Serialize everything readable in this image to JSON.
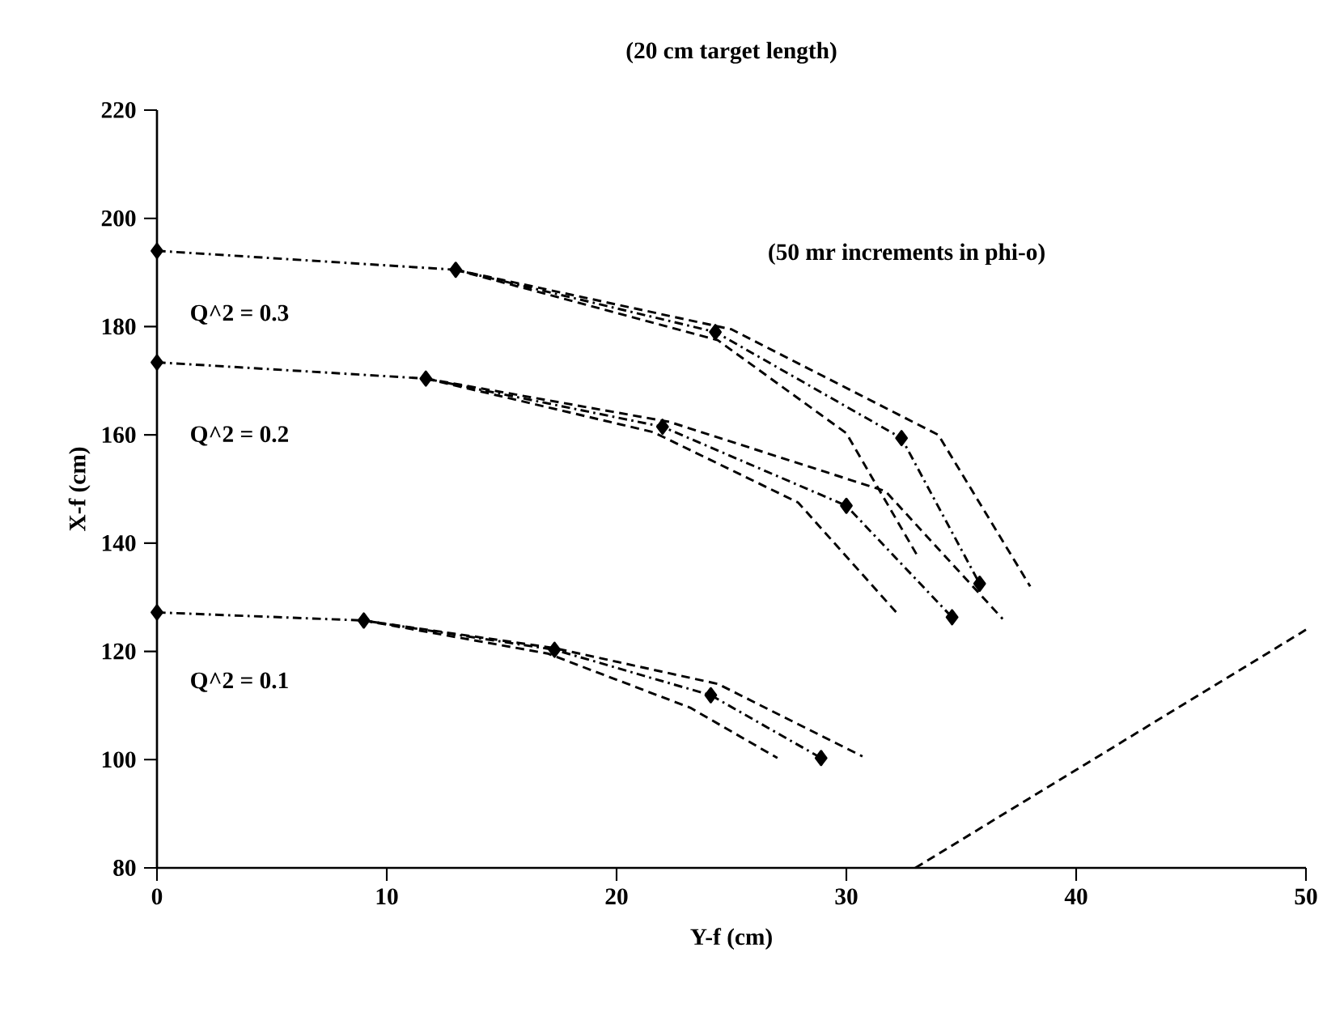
{
  "chart_data": {
    "type": "line",
    "title": "(20 cm target length)",
    "xlabel": "Y-f (cm)",
    "ylabel": "X-f (cm)",
    "xlim": [
      0,
      50
    ],
    "ylim": [
      80,
      220
    ],
    "xticks": [
      0,
      10,
      20,
      30,
      40,
      50
    ],
    "yticks": [
      80,
      100,
      120,
      140,
      160,
      180,
      200,
      220
    ],
    "grid": false,
    "series": [
      {
        "color": "#000000",
        "x": [
          0,
          13,
          24.3,
          32.4,
          35.8
        ],
        "values": [
          194,
          190.5,
          179,
          159.4,
          132.5
        ],
        "marker": "diamond",
        "line_style": "dashdot"
      },
      {
        "color": "#000000",
        "x": [
          13,
          25,
          34,
          38
        ],
        "values": [
          190.5,
          179.5,
          160,
          132
        ],
        "marker": "none",
        "line_style": "dashed"
      },
      {
        "color": "#000000",
        "x": [
          13,
          24.4,
          30,
          33.1
        ],
        "values": [
          190.5,
          177.5,
          160.3,
          137.6
        ],
        "marker": "none",
        "line_style": "dashed"
      },
      {
        "color": "#000000",
        "x": [
          0,
          11.7,
          22,
          30,
          34.6
        ],
        "values": [
          173.4,
          170.4,
          161.5,
          146.9,
          126.3
        ],
        "marker": "diamond",
        "line_style": "dashdot"
      },
      {
        "color": "#000000",
        "x": [
          11.7,
          22.3,
          31.7,
          36.8
        ],
        "values": [
          170.4,
          162.4,
          149.6,
          126
        ],
        "marker": "none",
        "line_style": "dashed"
      },
      {
        "color": "#000000",
        "x": [
          11.7,
          21.6,
          27.9,
          32.3
        ],
        "values": [
          170.4,
          160.5,
          147.5,
          126.6
        ],
        "marker": "none",
        "line_style": "dashed"
      },
      {
        "color": "#000000",
        "x": [
          0,
          9,
          17.3,
          24.1,
          28.9
        ],
        "values": [
          127.2,
          125.7,
          120.3,
          111.9,
          100.3
        ],
        "marker": "diamond",
        "line_style": "dashdot"
      },
      {
        "color": "#000000",
        "x": [
          9,
          17.3,
          24.4,
          30.7
        ],
        "values": [
          125.7,
          120.6,
          114,
          100.6
        ],
        "marker": "none",
        "line_style": "dashed"
      },
      {
        "color": "#000000",
        "x": [
          9,
          17.0,
          23.2,
          27
        ],
        "values": [
          125.7,
          119.6,
          109.6,
          100.3
        ],
        "marker": "none",
        "line_style": "dashed"
      },
      {
        "color": "#000000",
        "x": [
          33,
          50
        ],
        "values": [
          80,
          124
        ],
        "marker": "none",
        "line_style": "dashed"
      }
    ],
    "annotations": [
      "Q^2 = 0.3",
      "Q^2 = 0.2",
      "Q^2 = 0.1",
      "(50 mr increments in phi-o)"
    ]
  }
}
